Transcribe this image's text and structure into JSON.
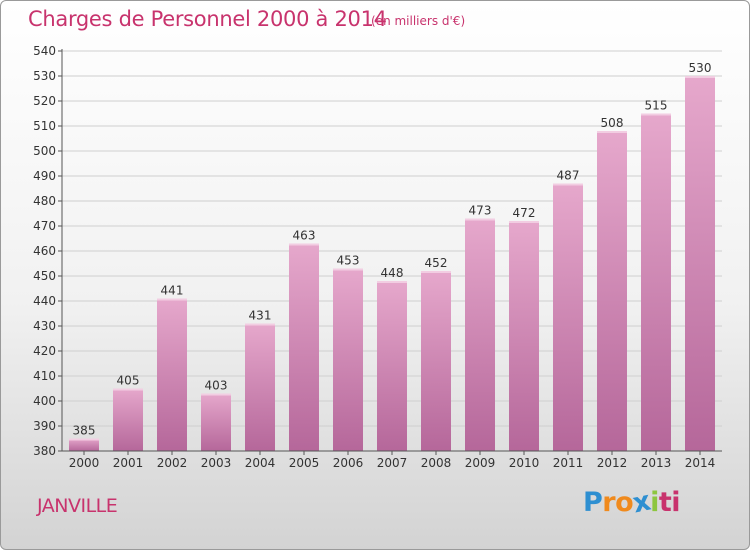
{
  "header": {
    "title": "Charges de Personnel 2000 à 2014",
    "subtitle": "(en milliers d'€)"
  },
  "footer": {
    "commune": "JANVILLE",
    "logo_letters": [
      "P",
      "r",
      "o",
      "x",
      "i",
      "ti"
    ]
  },
  "colors": {
    "accent": "#c8336d",
    "bar_light": "#e6a8cc",
    "bar_dark": "#b5679a",
    "grid": "#cfcfcf"
  },
  "chart_data": {
    "type": "bar",
    "title": "Charges de Personnel 2000 à 2014",
    "subtitle": "(en milliers d'€)",
    "xlabel": "",
    "ylabel": "",
    "categories": [
      "2000",
      "2001",
      "2002",
      "2003",
      "2004",
      "2005",
      "2006",
      "2007",
      "2008",
      "2009",
      "2010",
      "2011",
      "2012",
      "2013",
      "2014"
    ],
    "values": [
      385,
      405,
      441,
      403,
      431,
      463,
      453,
      448,
      452,
      473,
      472,
      487,
      508,
      515,
      530
    ],
    "ylim": [
      380,
      540
    ],
    "ytick_step": 10,
    "grid": true
  }
}
